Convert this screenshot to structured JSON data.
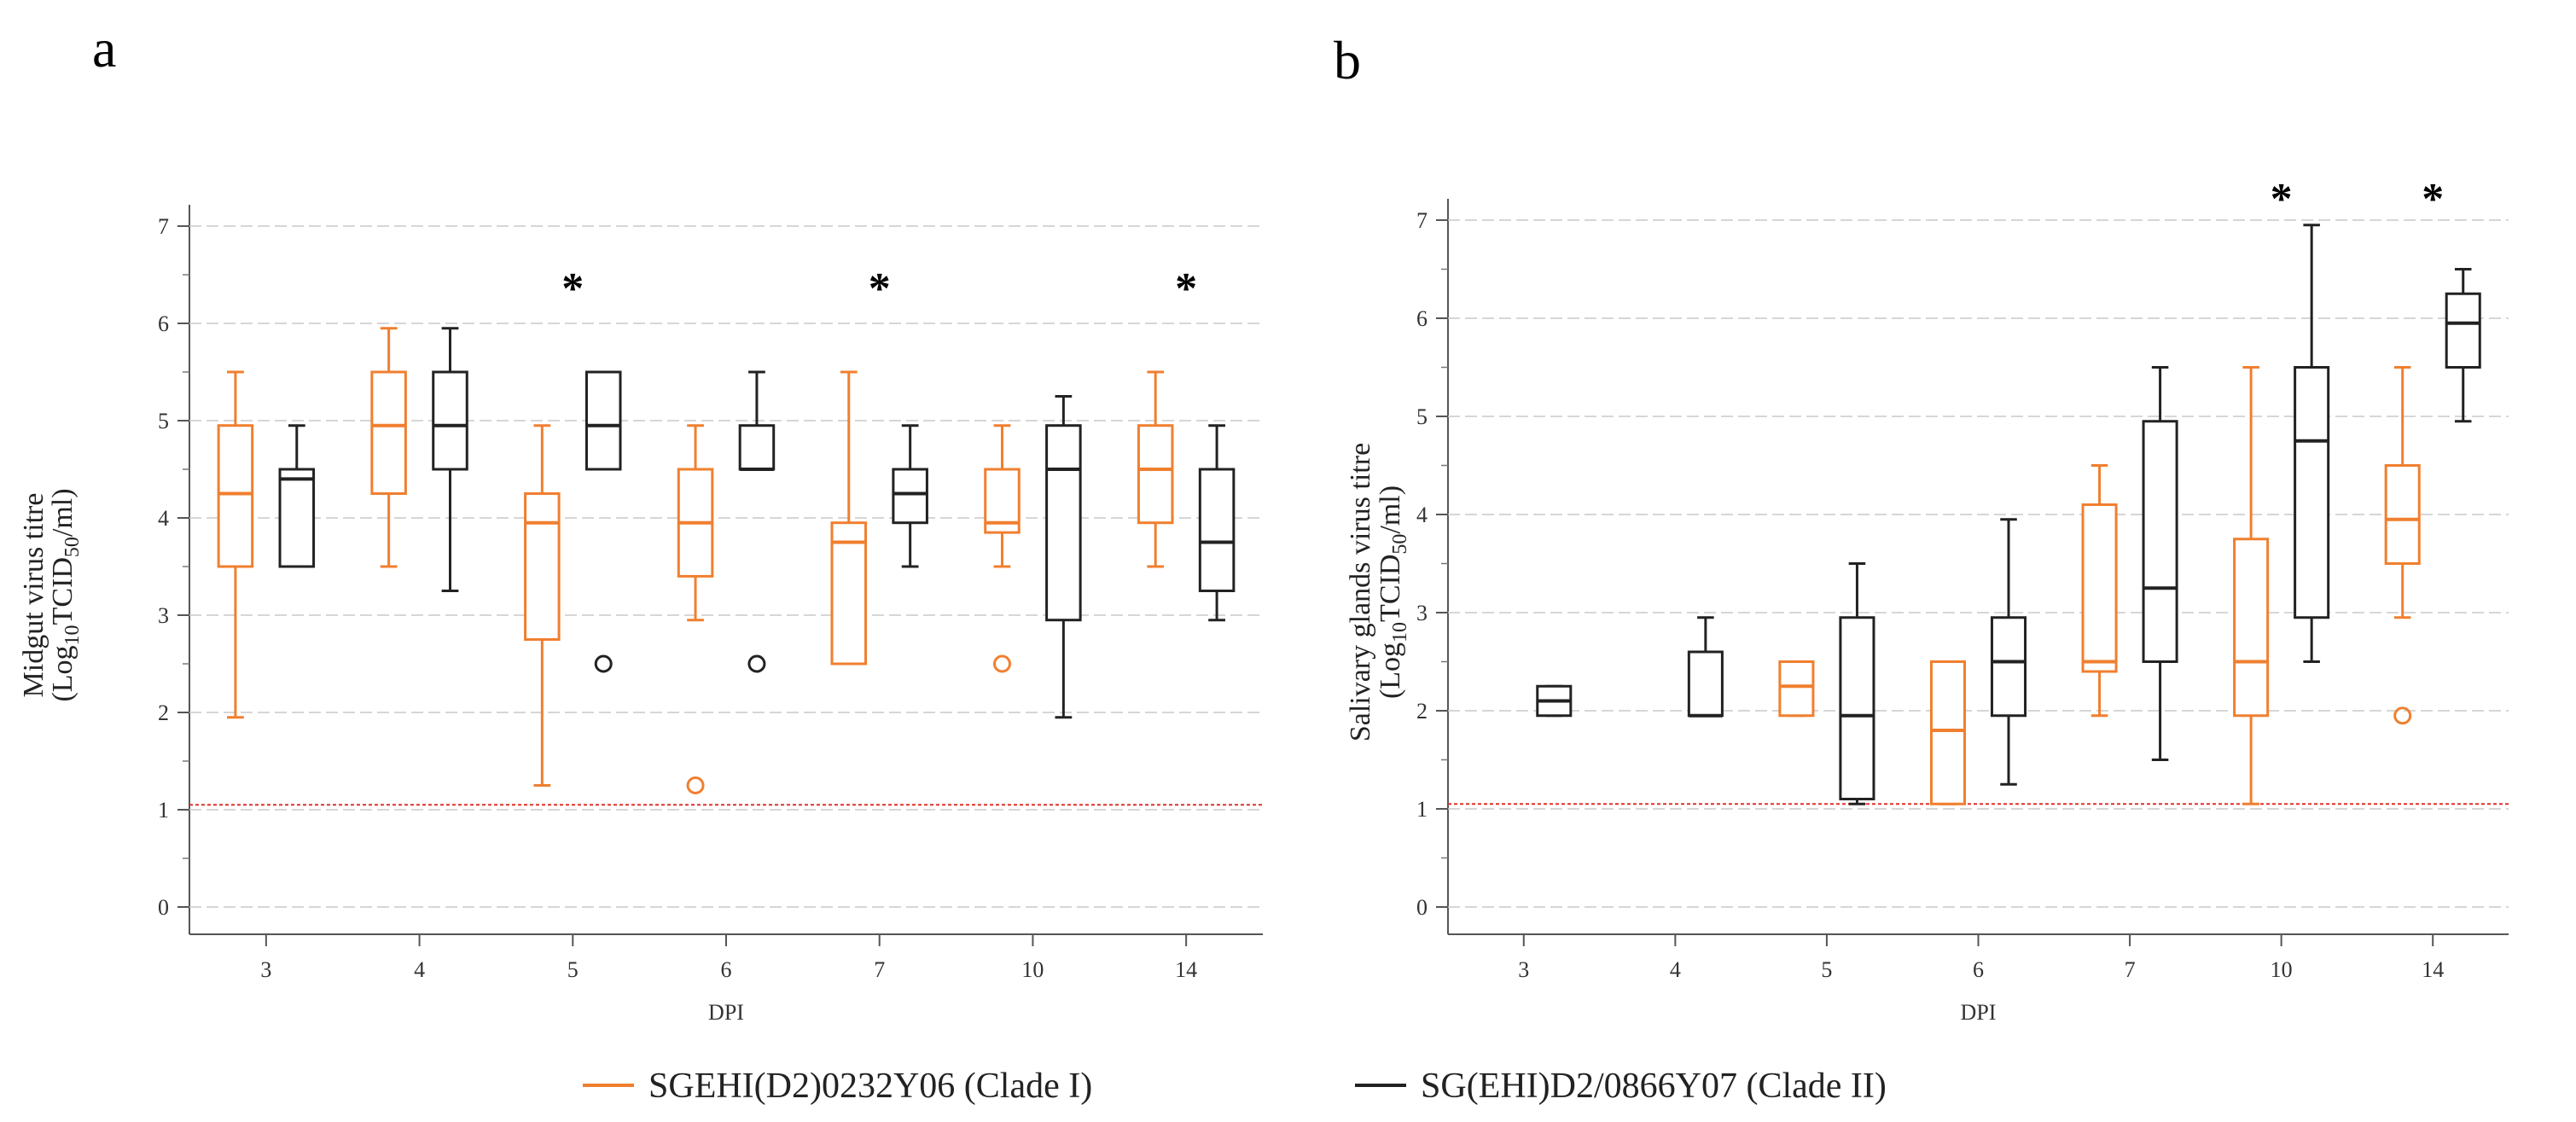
{
  "figure": {
    "legend": [
      {
        "label": "SGEHI(D2)0232Y06 (Clade I)",
        "color": "#f07f2f"
      },
      {
        "label": "SG(EHI)D2/0866Y07 (Clade II)",
        "color": "#222222"
      }
    ]
  },
  "chart_data": [
    {
      "panel": "a",
      "type": "box",
      "title": "",
      "xlabel": "DPI",
      "ylabel_main": "Midgut virus titre",
      "ylabel_unit": "(Log10TCID50/ml)",
      "ylim": [
        0,
        7
      ],
      "yticks": [
        0,
        1,
        2,
        3,
        4,
        5,
        6,
        7
      ],
      "categories": [
        "3",
        "4",
        "5",
        "6",
        "7",
        "10",
        "14"
      ],
      "detection_limit": 1.05,
      "significance": [
        "",
        "",
        "*",
        "",
        "*",
        "",
        "*"
      ],
      "series": [
        {
          "name": "SGEHI(D2)0232Y06 (Clade I)",
          "color": "#f07f2f",
          "boxes": [
            {
              "min": 1.95,
              "q1": 3.5,
              "median": 4.25,
              "q3": 4.95,
              "max": 5.5,
              "outliers": []
            },
            {
              "min": 3.5,
              "q1": 4.25,
              "median": 4.95,
              "q3": 5.5,
              "max": 5.95,
              "outliers": []
            },
            {
              "min": 1.25,
              "q1": 2.75,
              "median": 3.95,
              "q3": 4.25,
              "max": 4.95,
              "outliers": []
            },
            {
              "min": 2.95,
              "q1": 3.4,
              "median": 3.95,
              "q3": 4.5,
              "max": 4.95,
              "outliers": [
                1.25
              ]
            },
            {
              "min": 2.5,
              "q1": 2.5,
              "median": 3.75,
              "q3": 3.95,
              "max": 5.5,
              "outliers": []
            },
            {
              "min": 3.5,
              "q1": 3.85,
              "median": 3.95,
              "q3": 4.5,
              "max": 4.95,
              "outliers": [
                2.5
              ]
            },
            {
              "min": 3.5,
              "q1": 3.95,
              "median": 4.5,
              "q3": 4.95,
              "max": 5.5,
              "outliers": []
            }
          ]
        },
        {
          "name": "SG(EHI)D2/0866Y07 (Clade II)",
          "color": "#222222",
          "boxes": [
            {
              "min": 3.5,
              "q1": 3.5,
              "median": 4.4,
              "q3": 4.5,
              "max": 4.95,
              "outliers": []
            },
            {
              "min": 3.25,
              "q1": 4.5,
              "median": 4.95,
              "q3": 5.5,
              "max": 5.95,
              "outliers": []
            },
            {
              "min": 4.5,
              "q1": 4.5,
              "median": 4.95,
              "q3": 5.5,
              "max": 5.5,
              "outliers": [
                2.5
              ]
            },
            {
              "min": 4.5,
              "q1": 4.5,
              "median": 4.5,
              "q3": 4.95,
              "max": 5.5,
              "outliers": [
                2.5
              ]
            },
            {
              "min": 3.5,
              "q1": 3.95,
              "median": 4.25,
              "q3": 4.5,
              "max": 4.95,
              "outliers": []
            },
            {
              "min": 1.95,
              "q1": 2.95,
              "median": 4.5,
              "q3": 4.95,
              "max": 5.25,
              "outliers": []
            },
            {
              "min": 2.95,
              "q1": 3.25,
              "median": 3.75,
              "q3": 4.5,
              "max": 4.95,
              "outliers": []
            }
          ]
        }
      ]
    },
    {
      "panel": "b",
      "type": "box",
      "title": "",
      "xlabel": "DPI",
      "ylabel_main": "Salivary glands virus titre",
      "ylabel_unit": "(Log10TCID50/ml)",
      "ylim": [
        0,
        7
      ],
      "yticks": [
        0,
        1,
        2,
        3,
        4,
        5,
        6,
        7
      ],
      "categories": [
        "3",
        "4",
        "5",
        "6",
        "7",
        "10",
        "14"
      ],
      "detection_limit": 1.05,
      "significance": [
        "",
        "",
        "",
        "",
        "",
        "*",
        "*"
      ],
      "series": [
        {
          "name": "SGEHI(D2)0232Y06 (Clade I)",
          "color": "#f07f2f",
          "boxes": [
            null,
            null,
            {
              "min": 1.95,
              "q1": 1.95,
              "median": 2.25,
              "q3": 2.5,
              "max": 2.5,
              "outliers": []
            },
            {
              "min": 1.05,
              "q1": 1.05,
              "median": 1.8,
              "q3": 2.5,
              "max": 2.5,
              "outliers": []
            },
            {
              "min": 1.95,
              "q1": 2.4,
              "median": 2.5,
              "q3": 4.1,
              "max": 4.5,
              "outliers": []
            },
            {
              "min": 1.05,
              "q1": 1.95,
              "median": 2.5,
              "q3": 3.75,
              "max": 5.5,
              "outliers": []
            },
            {
              "min": 2.95,
              "q1": 3.5,
              "median": 3.95,
              "q3": 4.5,
              "max": 5.5,
              "outliers": [
                1.95
              ]
            }
          ]
        },
        {
          "name": "SG(EHI)D2/0866Y07 (Clade II)",
          "color": "#222222",
          "boxes": [
            {
              "min": 1.95,
              "q1": 1.95,
              "median": 2.1,
              "q3": 2.25,
              "max": 2.25,
              "outliers": []
            },
            {
              "min": 1.95,
              "q1": 1.95,
              "median": 1.95,
              "q3": 2.6,
              "max": 2.95,
              "outliers": []
            },
            {
              "min": 1.05,
              "q1": 1.1,
              "median": 1.95,
              "q3": 2.95,
              "max": 3.5,
              "outliers": []
            },
            {
              "min": 1.25,
              "q1": 1.95,
              "median": 2.5,
              "q3": 2.95,
              "max": 3.95,
              "outliers": []
            },
            {
              "min": 1.5,
              "q1": 2.5,
              "median": 3.25,
              "q3": 4.95,
              "max": 5.5,
              "outliers": []
            },
            {
              "min": 2.5,
              "q1": 2.95,
              "median": 4.75,
              "q3": 5.5,
              "max": 6.95,
              "outliers": []
            },
            {
              "min": 4.95,
              "q1": 5.5,
              "median": 5.95,
              "q3": 6.25,
              "max": 6.5,
              "outliers": []
            }
          ]
        }
      ]
    }
  ]
}
